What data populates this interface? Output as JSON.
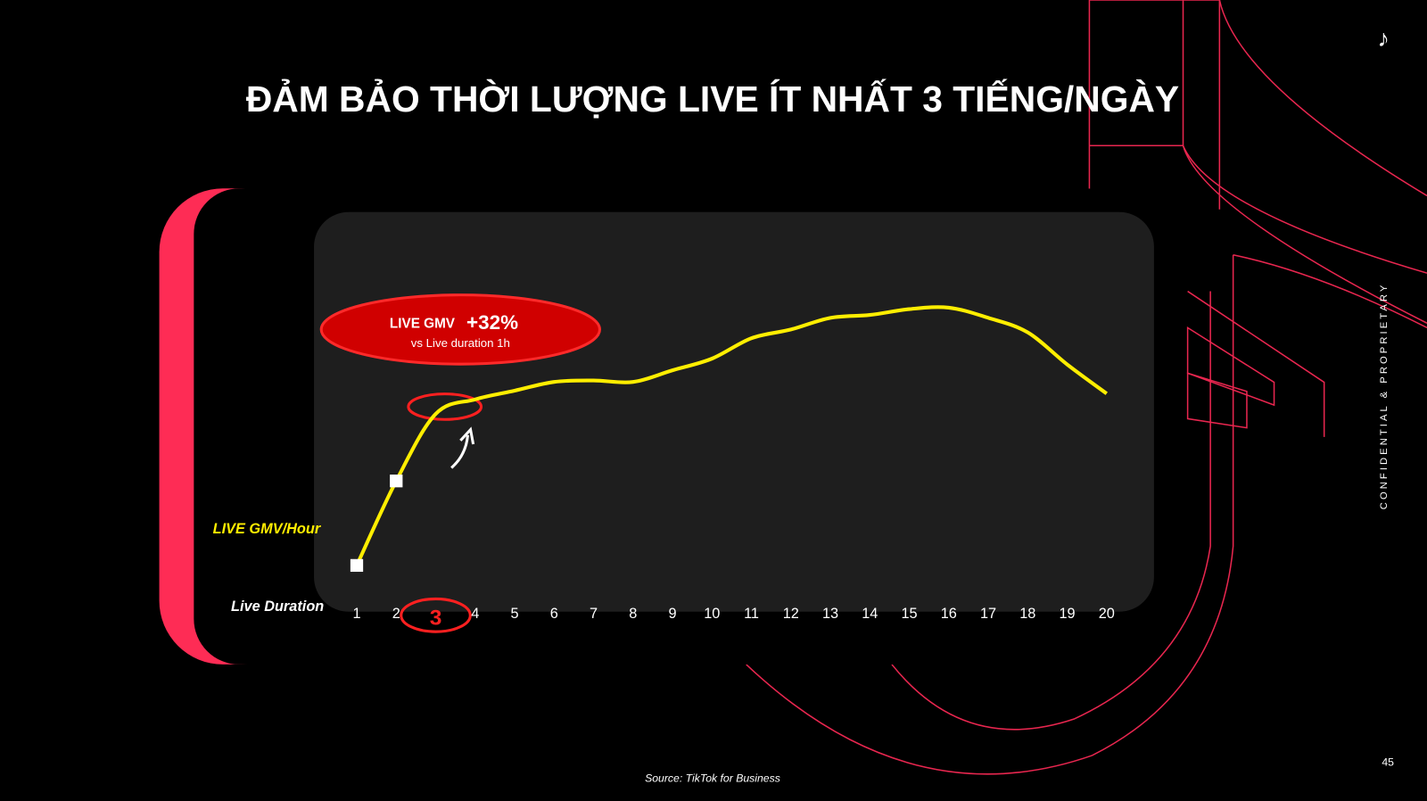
{
  "title": "ĐẢM BẢO THỜI LƯỢNG LIVE ÍT NHẤT 3 TIẾNG/NGÀY",
  "chart_data": {
    "type": "line",
    "y_label": "LIVE GMV/Hour",
    "x_label": "Live Duration",
    "x": [
      1,
      2,
      3,
      4,
      5,
      6,
      7,
      8,
      9,
      10,
      11,
      12,
      13,
      14,
      15,
      16,
      17,
      18,
      19,
      20
    ],
    "values": [
      9,
      38,
      61,
      66,
      69,
      72,
      72.5,
      72,
      76,
      80,
      87,
      90,
      94,
      95,
      97,
      97.5,
      94,
      89,
      78,
      68
    ],
    "color": "#ffee00",
    "ylim": [
      0,
      100
    ],
    "xlim": [
      1,
      20
    ],
    "highlight_x": 3,
    "annotation": {
      "label": "LIVE GMV",
      "value": "+32%",
      "note": "vs Live duration 1h"
    }
  },
  "side_note": "CONFIDENTIAL & PROPRIETARY",
  "page_number": "45",
  "source": "Source: TikTok for Business"
}
